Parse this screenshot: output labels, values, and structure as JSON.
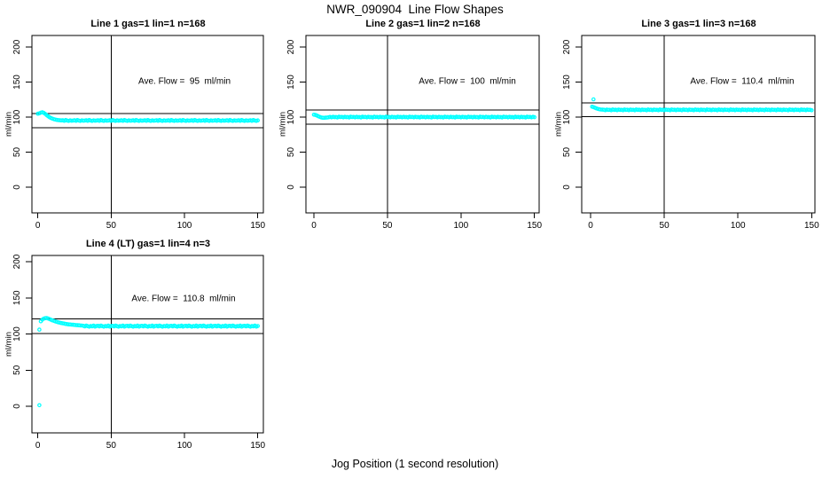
{
  "figure": {
    "title": "NWR_090904  Line Flow Shapes",
    "xlabel": "Jog Position (1 second resolution)",
    "background": "#FFFFFF",
    "axis_color": "#000000",
    "point_color": "#00FFFF"
  },
  "chart_data": [
    {
      "type": "scatter",
      "title": "Line 1 gas=1 lin=1 n=168",
      "annotation": "Ave. Flow =  95  ml/min",
      "ave_flow_ml_min": 95,
      "n": 168,
      "ylabel": "ml/min",
      "xlim": [
        0,
        150
      ],
      "ylim": [
        0,
        200
      ],
      "xticks": [
        0,
        50,
        100,
        150
      ],
      "yticks": [
        0,
        50,
        100,
        150,
        200
      ],
      "ref_hlines": [
        105,
        85
      ],
      "ref_vline": 50,
      "outliers": [],
      "points_head": [
        [
          0,
          104.8
        ],
        [
          1,
          105.3
        ],
        [
          2,
          106.3
        ],
        [
          3,
          106.8
        ],
        [
          4,
          106.1
        ],
        [
          5,
          104.6
        ],
        [
          6,
          102.8
        ],
        [
          7,
          101.2
        ],
        [
          8,
          99.8
        ],
        [
          9,
          98.6
        ],
        [
          10,
          97.7
        ],
        [
          11,
          97.0
        ],
        [
          12,
          96.4
        ],
        [
          13,
          96.0
        ],
        [
          14,
          95.7
        ],
        [
          15,
          95.5
        ],
        [
          16,
          95.3
        ]
      ],
      "points_band": {
        "x_start": 17,
        "x_end": 150,
        "step": 1,
        "y_cycle": [
          95.4,
          94.7,
          95.8,
          95.0,
          94.5,
          95.3,
          94.8,
          95.1
        ]
      }
    },
    {
      "type": "scatter",
      "title": "Line 2 gas=1 lin=2 n=168",
      "annotation": "Ave. Flow =  100  ml/min",
      "ave_flow_ml_min": 100,
      "n": 168,
      "ylabel": "ml/min",
      "xlim": [
        0,
        150
      ],
      "ylim": [
        0,
        200
      ],
      "xticks": [
        0,
        50,
        100,
        150
      ],
      "yticks": [
        0,
        50,
        100,
        150,
        200
      ],
      "ref_hlines": [
        110,
        90
      ],
      "ref_vline": 50,
      "outliers": [],
      "points_head": [
        [
          0,
          103.4
        ],
        [
          1,
          103.1
        ],
        [
          2,
          102.3
        ],
        [
          3,
          101.2
        ],
        [
          4,
          100.2
        ],
        [
          5,
          99.5
        ],
        [
          6,
          99.1
        ],
        [
          7,
          99.0
        ],
        [
          8,
          99.2
        ],
        [
          9,
          99.4
        ],
        [
          10,
          99.7
        ]
      ],
      "points_band": {
        "x_start": 11,
        "x_end": 150,
        "step": 1,
        "y_cycle": [
          100.2,
          99.6,
          100.4,
          99.9,
          100.1,
          99.5,
          100.5,
          100.0
        ]
      }
    },
    {
      "type": "scatter",
      "title": "Line 3 gas=1 lin=3 n=168",
      "annotation": "Ave. Flow =  110.4  ml/min",
      "ave_flow_ml_min": 110.4,
      "n": 168,
      "ylabel": "ml/min",
      "xlim": [
        0,
        150
      ],
      "ylim": [
        0,
        200
      ],
      "xticks": [
        0,
        50,
        100,
        150
      ],
      "yticks": [
        0,
        50,
        100,
        150,
        200
      ],
      "ref_hlines": [
        120.4,
        100.4
      ],
      "ref_vline": 50,
      "outliers": [
        [
          2,
          125.3
        ]
      ],
      "points_head": [
        [
          1,
          114.8
        ],
        [
          2,
          114.2
        ],
        [
          3,
          113.3
        ],
        [
          4,
          112.4
        ],
        [
          5,
          111.7
        ],
        [
          6,
          111.2
        ],
        [
          7,
          110.8
        ],
        [
          8,
          110.6
        ]
      ],
      "points_band": {
        "x_start": 9,
        "x_end": 150,
        "step": 1,
        "y_cycle": [
          110.5,
          109.9,
          110.8,
          110.2,
          110.4,
          109.8,
          110.9,
          110.3
        ]
      }
    },
    {
      "type": "scatter",
      "title": "Line 4 (LT) gas=1 lin=4 n=3",
      "annotation": "Ave. Flow =  110.8  ml/min",
      "ave_flow_ml_min": 110.8,
      "n": 3,
      "ylabel": "ml/min",
      "xlim": [
        0,
        150
      ],
      "ylim": [
        0,
        200
      ],
      "xticks": [
        0,
        50,
        100,
        150
      ],
      "yticks": [
        0,
        50,
        100,
        150,
        200
      ],
      "ref_hlines": [
        120.8,
        100.8
      ],
      "ref_vline": 50,
      "outliers": [
        [
          1,
          106
        ],
        [
          1,
          1.5
        ]
      ],
      "points_head": [
        [
          2,
          117.5
        ],
        [
          3,
          119.8
        ],
        [
          4,
          121.2
        ],
        [
          5,
          121.9
        ],
        [
          6,
          122.0
        ],
        [
          7,
          121.4
        ],
        [
          8,
          120.5
        ],
        [
          9,
          119.6
        ],
        [
          10,
          118.8
        ],
        [
          11,
          118.0
        ],
        [
          12,
          117.3
        ],
        [
          13,
          116.7
        ],
        [
          14,
          116.1
        ],
        [
          15,
          115.6
        ],
        [
          16,
          115.1
        ],
        [
          17,
          114.7
        ],
        [
          18,
          114.3
        ],
        [
          19,
          113.9
        ],
        [
          20,
          113.6
        ],
        [
          21,
          113.3
        ],
        [
          22,
          113.1
        ],
        [
          23,
          112.9
        ],
        [
          24,
          112.7
        ],
        [
          25,
          112.5
        ],
        [
          26,
          112.3
        ],
        [
          27,
          112.1
        ],
        [
          28,
          112.0
        ],
        [
          29,
          111.8
        ],
        [
          30,
          111.7
        ]
      ],
      "points_band": {
        "x_start": 31,
        "x_end": 150,
        "step": 1,
        "y_cycle": [
          111.3,
          110.4,
          111.7,
          110.8,
          110.1,
          111.1,
          110.6,
          111.5,
          110.2,
          111.0
        ]
      }
    }
  ]
}
